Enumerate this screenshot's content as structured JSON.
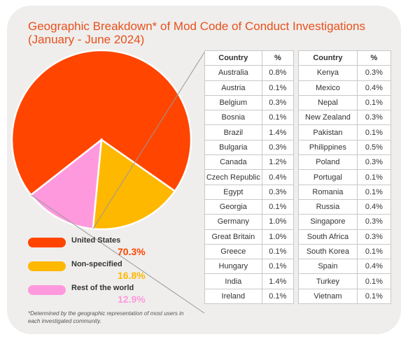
{
  "chart_data": {
    "type": "pie",
    "title": "Geographic Breakdown* of Mod Code of Conduct Investigations (January - June 2024)",
    "slices": [
      {
        "name": "United States",
        "value": 70.3,
        "label": "70.3%",
        "color": "#ff4500"
      },
      {
        "name": "Non-specified",
        "value": 16.8,
        "label": "16.8%",
        "color": "#ffb800"
      },
      {
        "name": "Rest of the world",
        "value": 12.9,
        "label": "12.9%",
        "color": "#ff99dd"
      }
    ],
    "legend_position": "bottom-left",
    "footnote": "*Determined by the geographic representation of most users in each investigated community.",
    "table": {
      "headers": [
        "Country",
        "%"
      ],
      "left": [
        [
          "Australia",
          "0.8%"
        ],
        [
          "Austria",
          "0.1%"
        ],
        [
          "Belgium",
          "0.3%"
        ],
        [
          "Bosnia",
          "0.1%"
        ],
        [
          "Brazil",
          "1.4%"
        ],
        [
          "Bulgaria",
          "0.3%"
        ],
        [
          "Canada",
          "1.2%"
        ],
        [
          "Czech Republic",
          "0.4%"
        ],
        [
          "Egypt",
          "0.3%"
        ],
        [
          "Georgia",
          "0.1%"
        ],
        [
          "Germany",
          "1.0%"
        ],
        [
          "Great Britain",
          "1.0%"
        ],
        [
          "Greece",
          "0.1%"
        ],
        [
          "Hungary",
          "0.1%"
        ],
        [
          "India",
          "1.4%"
        ],
        [
          "Ireland",
          "0.1%"
        ]
      ],
      "right": [
        [
          "Kenya",
          "0.3%"
        ],
        [
          "Mexico",
          "0.4%"
        ],
        [
          "Nepal",
          "0.1%"
        ],
        [
          "New Zealand",
          "0.3%"
        ],
        [
          "Pakistan",
          "0.1%"
        ],
        [
          "Philippines",
          "0.5%"
        ],
        [
          "Poland",
          "0.3%"
        ],
        [
          "Portugal",
          "0.1%"
        ],
        [
          "Romania",
          "0.1%"
        ],
        [
          "Russia",
          "0.4%"
        ],
        [
          "Singapore",
          "0.3%"
        ],
        [
          "South Africa",
          "0.3%"
        ],
        [
          "South Korea",
          "0.1%"
        ],
        [
          "Spain",
          "0.4%"
        ],
        [
          "Turkey",
          "0.1%"
        ],
        [
          "Vietnam",
          "0.1%"
        ]
      ]
    }
  }
}
